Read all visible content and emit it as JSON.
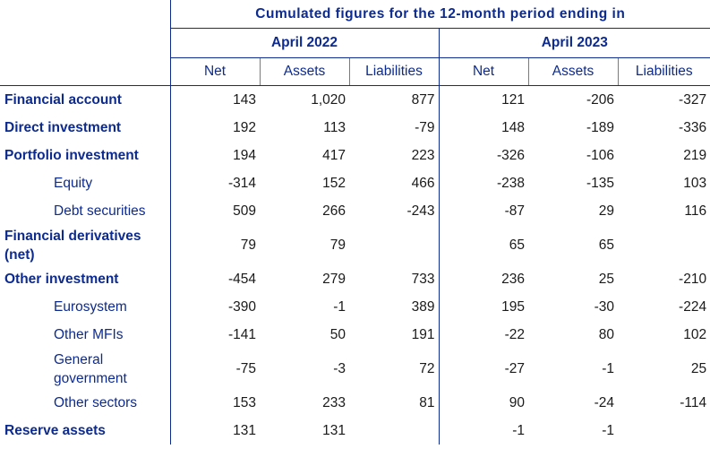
{
  "header": {
    "title": "Cumulated figures for the 12-month period ending in",
    "periods": [
      "April 2022",
      "April 2023"
    ],
    "columns": [
      "Net",
      "Assets",
      "Liabilities",
      "Net",
      "Assets",
      "Liabilities"
    ]
  },
  "rows": [
    {
      "label": "Financial account",
      "level": "main",
      "values": [
        "143",
        "1,020",
        "877",
        "121",
        "-206",
        "-327"
      ]
    },
    {
      "label": "Direct investment",
      "level": "main",
      "values": [
        "192",
        "113",
        "-79",
        "148",
        "-189",
        "-336"
      ]
    },
    {
      "label": "Portfolio investment",
      "level": "main",
      "values": [
        "194",
        "417",
        "223",
        "-326",
        "-106",
        "219"
      ]
    },
    {
      "label": "Equity",
      "level": "sub",
      "values": [
        "-314",
        "152",
        "466",
        "-238",
        "-135",
        "103"
      ]
    },
    {
      "label": "Debt securities",
      "level": "sub",
      "values": [
        "509",
        "266",
        "-243",
        "-87",
        "29",
        "116"
      ]
    },
    {
      "label": "Financial derivatives (net)",
      "level": "main",
      "values": [
        "79",
        "79",
        "",
        "65",
        "65",
        ""
      ]
    },
    {
      "label": "Other investment",
      "level": "main",
      "values": [
        "-454",
        "279",
        "733",
        "236",
        "25",
        "-210"
      ]
    },
    {
      "label": "Eurosystem",
      "level": "sub",
      "values": [
        "-390",
        "-1",
        "389",
        "195",
        "-30",
        "-224"
      ]
    },
    {
      "label": "Other MFIs",
      "level": "sub",
      "values": [
        "-141",
        "50",
        "191",
        "-22",
        "80",
        "102"
      ]
    },
    {
      "label": "General government",
      "level": "sub",
      "values": [
        "-75",
        "-3",
        "72",
        "-27",
        "-1",
        "25"
      ]
    },
    {
      "label": "Other sectors",
      "level": "sub",
      "values": [
        "153",
        "233",
        "81",
        "90",
        "-24",
        "-114"
      ]
    },
    {
      "label": "Reserve assets",
      "level": "main",
      "values": [
        "131",
        "131",
        "",
        "-1",
        "-1",
        ""
      ]
    }
  ]
}
